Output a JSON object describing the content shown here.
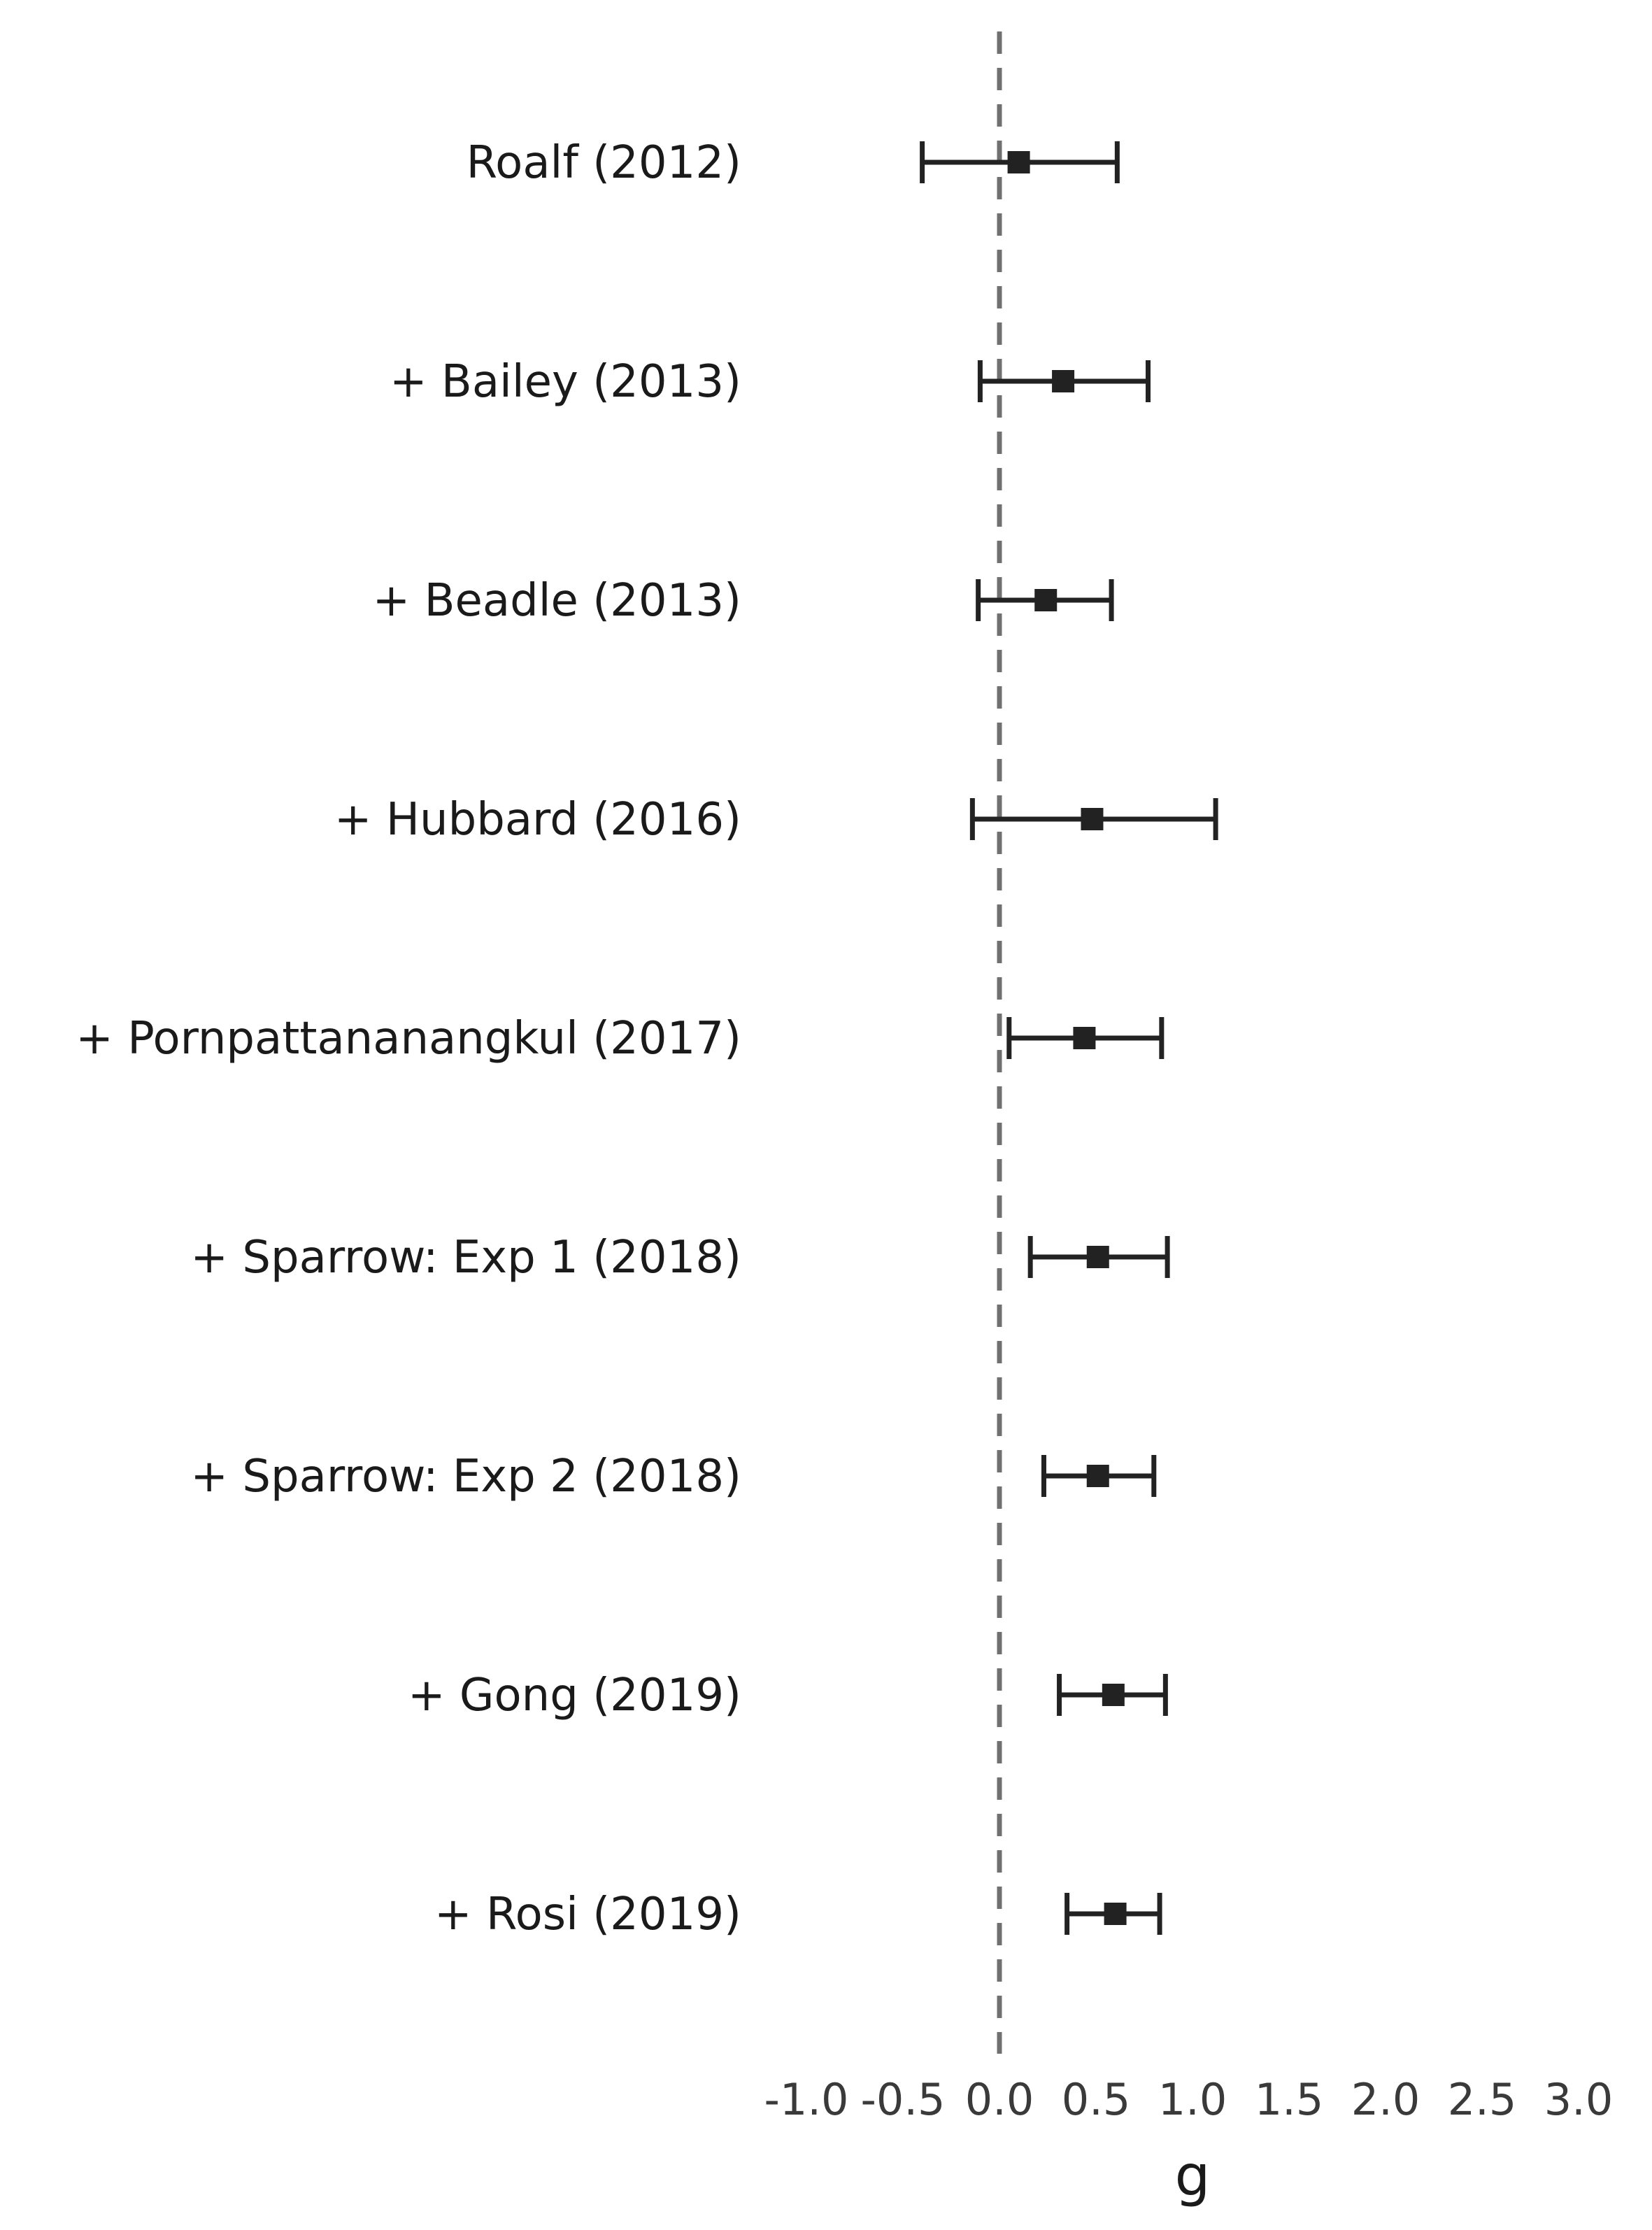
{
  "chart_data": {
    "type": "forest",
    "title": "",
    "xlabel": "g",
    "ylabel": "",
    "xlim": [
      -1.0,
      3.0
    ],
    "xticks": [
      "-1.0",
      "-0.5",
      "0.0",
      "0.5",
      "1.0",
      "1.5",
      "2.0",
      "2.5",
      "3.0"
    ],
    "xtick_values": [
      -1.0,
      -0.5,
      0.0,
      0.5,
      1.0,
      1.5,
      2.0,
      2.5,
      3.0
    ],
    "reference_line": 0.0,
    "grid": false,
    "legend": "none",
    "colors": {
      "marker": "#222222",
      "whisker": "#222222",
      "reference": "#707070"
    },
    "studies": [
      {
        "label": "Roalf (2012)",
        "estimate": 0.1,
        "lower": -0.4,
        "upper": 0.61
      },
      {
        "label": "+ Bailey (2013)",
        "estimate": 0.33,
        "lower": -0.1,
        "upper": 0.77
      },
      {
        "label": "+ Beadle (2013)",
        "estimate": 0.24,
        "lower": -0.11,
        "upper": 0.58
      },
      {
        "label": "+ Hubbard (2016)",
        "estimate": 0.48,
        "lower": -0.14,
        "upper": 1.12
      },
      {
        "label": "+ Pornpattananangkul (2017)",
        "estimate": 0.44,
        "lower": 0.05,
        "upper": 0.84
      },
      {
        "label": "+ Sparrow: Exp 1 (2018)",
        "estimate": 0.51,
        "lower": 0.16,
        "upper": 0.87
      },
      {
        "label": "+ Sparrow: Exp 2 (2018)",
        "estimate": 0.51,
        "lower": 0.23,
        "upper": 0.8
      },
      {
        "label": "+ Gong (2019)",
        "estimate": 0.59,
        "lower": 0.31,
        "upper": 0.86
      },
      {
        "label": "+ Rosi (2019)",
        "estimate": 0.6,
        "lower": 0.35,
        "upper": 0.83
      }
    ]
  }
}
